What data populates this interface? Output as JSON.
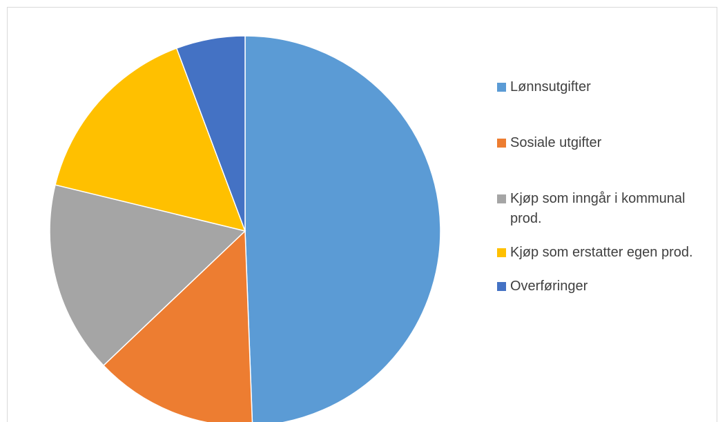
{
  "chart_data": {
    "type": "pie",
    "categories": [
      "Lønnsutgifter",
      "Sosiale utgifter",
      "Kjøp som inngår i kommunal prod.",
      "Kjøp som erstatter egen prod.",
      "Overføringer"
    ],
    "values": [
      49.4,
      13.5,
      15.9,
      15.5,
      5.7
    ],
    "colors": [
      "#5b9bd5",
      "#ed7d31",
      "#a5a5a5",
      "#ffc000",
      "#4472c4"
    ],
    "legend": "right"
  }
}
